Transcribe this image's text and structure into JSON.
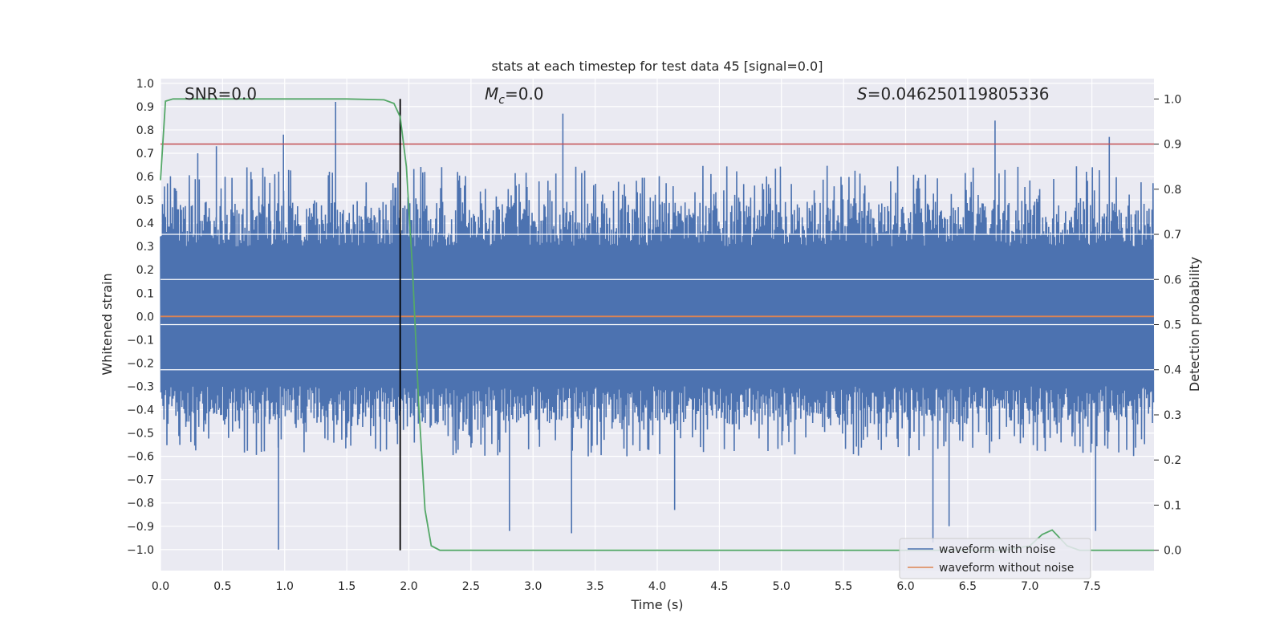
{
  "chart_data": {
    "type": "line",
    "title": "stats at each timestep for test data 45 [signal=0.0]",
    "xlabel": "Time (s)",
    "ylabel": "Whitened strain",
    "y2label": "Detection probability",
    "xlim": [
      0.0,
      8.0
    ],
    "ylim": [
      -1.09,
      1.02
    ],
    "y2lim": [
      -0.045,
      1.045
    ],
    "xticks": [
      "0.0",
      "0.5",
      "1.0",
      "1.5",
      "2.0",
      "2.5",
      "3.0",
      "3.5",
      "4.0",
      "4.5",
      "5.0",
      "5.5",
      "6.0",
      "6.5",
      "7.0",
      "7.5"
    ],
    "yticks": [
      "1.0",
      "0.9",
      "0.8",
      "0.7",
      "0.6",
      "0.5",
      "0.4",
      "0.3",
      "0.2",
      "0.1",
      "0.0",
      "−0.1",
      "−0.2",
      "−0.3",
      "−0.4",
      "−0.5",
      "−0.6",
      "−0.7",
      "−0.8",
      "−0.9",
      "−1.0"
    ],
    "y2ticks": [
      "1.0",
      "0.9",
      "0.8",
      "0.7",
      "0.6",
      "0.5",
      "0.4",
      "0.3",
      "0.2",
      "0.1",
      "0.0"
    ],
    "annotations": {
      "snr": "SNR=0.0",
      "mc_symbol": "M",
      "mc_sub": "c",
      "mc_value": "=0.0",
      "s_symbol": "S",
      "s_value": "=0.046250119805336"
    },
    "legend": {
      "placement": "lower-right",
      "entries": [
        "waveform with noise",
        "waveform without noise"
      ]
    },
    "colors": {
      "background": "#eaeaf2",
      "grid": "#ffffff",
      "noise": "#4c72b0",
      "clean": "#dd8452",
      "probability": "#55a868",
      "threshold": "#c44e52",
      "marker": "#000000"
    },
    "series": [
      {
        "name": "waveform with noise",
        "kind": "noise-envelope",
        "sampling_step_s": 0.008,
        "upper_range": [
          0.3,
          0.65
        ],
        "lower_range": [
          -0.3,
          -0.6
        ],
        "peaks": [
          {
            "t": 0.95,
            "v": -1.0
          },
          {
            "t": 0.99,
            "v": 0.78
          },
          {
            "t": 1.41,
            "v": 0.92
          },
          {
            "t": 3.24,
            "v": 0.87
          },
          {
            "t": 2.81,
            "v": -0.92
          },
          {
            "t": 3.31,
            "v": -0.93
          },
          {
            "t": 4.14,
            "v": -0.83
          },
          {
            "t": 6.22,
            "v": -0.97
          },
          {
            "t": 6.35,
            "v": -0.9
          },
          {
            "t": 6.72,
            "v": 0.84
          },
          {
            "t": 7.53,
            "v": -0.92
          },
          {
            "t": 7.64,
            "v": 0.77
          },
          {
            "t": 0.3,
            "v": 0.7
          },
          {
            "t": 0.45,
            "v": 0.73
          }
        ]
      },
      {
        "name": "waveform without noise",
        "x": [
          0.0,
          8.0
        ],
        "y": [
          0.0,
          0.0
        ]
      },
      {
        "name": "Detection probability",
        "axis": "right",
        "x": [
          0.0,
          0.04,
          0.1,
          0.3,
          1.0,
          1.5,
          1.8,
          1.88,
          1.93,
          1.98,
          2.03,
          2.08,
          2.13,
          2.18,
          2.25,
          3.0,
          4.0,
          5.0,
          6.0,
          6.8,
          7.0,
          7.1,
          7.18,
          7.3,
          7.4,
          8.0
        ],
        "y": [
          0.82,
          0.995,
          1.0,
          1.0,
          1.0,
          1.0,
          0.998,
          0.99,
          0.96,
          0.85,
          0.62,
          0.32,
          0.09,
          0.01,
          0.0,
          0.0,
          0.0,
          0.0,
          0.0,
          0.0,
          0.01,
          0.035,
          0.045,
          0.01,
          0.0,
          0.0
        ]
      }
    ],
    "threshold_y2": 0.9,
    "marker_time": 1.93
  }
}
